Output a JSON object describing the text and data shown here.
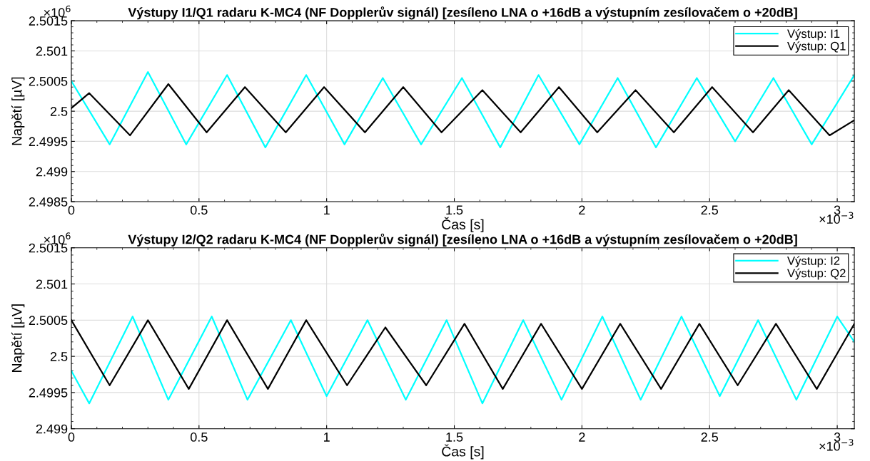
{
  "chart_data": [
    {
      "type": "line",
      "title": "Výstupy I1/Q1 radaru K-MC4 (NF Dopplerův signál) [zesíleno LNA o +16dB a výstupním zesílovačem o +20dB]",
      "xlabel": "Čas [s]",
      "ylabel": "Napětí [µV]",
      "annotations": [
        "×10$^{6}$",
        "×10$^{−3}$"
      ],
      "xlim": [
        0,
        3.067
      ],
      "ylim": [
        2.4985,
        2.5015
      ],
      "xticks": [
        0,
        0.5,
        1,
        1.5,
        2,
        2.5,
        3
      ],
      "yticks": [
        2.4985,
        2.499,
        2.4995,
        2.5,
        2.5005,
        2.501,
        2.5015
      ],
      "grid": true,
      "legend": "top right",
      "series": [
        {
          "name": "Výstup: I1",
          "color": "#00ffff",
          "x": [
            0,
            0.15,
            0.3,
            0.45,
            0.61,
            0.76,
            0.92,
            1.07,
            1.22,
            1.37,
            1.53,
            1.68,
            1.83,
            1.99,
            2.14,
            2.29,
            2.45,
            2.6,
            2.75,
            2.9,
            3.067
          ],
          "values": [
            2.5005,
            2.49945,
            2.50065,
            2.49945,
            2.5006,
            2.4994,
            2.5006,
            2.49945,
            2.50055,
            2.49945,
            2.50055,
            2.4994,
            2.5006,
            2.49945,
            2.50055,
            2.4994,
            2.50055,
            2.4995,
            2.50055,
            2.49945,
            2.5006
          ]
        },
        {
          "name": "Výstup: Q1",
          "color": "#000000",
          "x": [
            0,
            0.07,
            0.23,
            0.38,
            0.53,
            0.68,
            0.84,
            0.99,
            1.15,
            1.3,
            1.45,
            1.61,
            1.76,
            1.91,
            2.06,
            2.21,
            2.36,
            2.51,
            2.67,
            2.81,
            2.97,
            3.067
          ],
          "values": [
            2.50005,
            2.5003,
            2.4996,
            2.50045,
            2.49965,
            2.5004,
            2.49965,
            2.5004,
            2.49965,
            2.5004,
            2.49965,
            2.50035,
            2.49965,
            2.5004,
            2.49965,
            2.50035,
            2.49965,
            2.5004,
            2.49965,
            2.50035,
            2.4996,
            2.49985
          ]
        }
      ]
    },
    {
      "type": "line",
      "title": "Výstupy I2/Q2 radaru K-MC4 (NF Dopplerův signál) [zesíleno LNA o +16dB a výstupním zesílovačem o +20dB]",
      "xlabel": "Čas [s]",
      "ylabel": "Napětí [µV]",
      "annotations": [
        "×10$^{6}$",
        "×10$^{−3}$"
      ],
      "xlim": [
        0,
        3.067
      ],
      "ylim": [
        2.499,
        2.5015
      ],
      "xticks": [
        0,
        0.5,
        1,
        1.5,
        2,
        2.5,
        3
      ],
      "yticks": [
        2.499,
        2.4995,
        2.5,
        2.5005,
        2.501,
        2.5015
      ],
      "grid": true,
      "legend": "top right",
      "series": [
        {
          "name": "Výstup: I2",
          "color": "#00ffff",
          "x": [
            0,
            0.07,
            0.24,
            0.38,
            0.55,
            0.69,
            0.86,
            1.0,
            1.16,
            1.31,
            1.47,
            1.61,
            1.77,
            1.92,
            2.08,
            2.23,
            2.39,
            2.54,
            2.69,
            2.84,
            3.0,
            3.067
          ],
          "values": [
            2.4998,
            2.49935,
            2.50055,
            2.4994,
            2.50055,
            2.4994,
            2.5005,
            2.49945,
            2.5005,
            2.4994,
            2.5005,
            2.49935,
            2.5005,
            2.4994,
            2.50055,
            2.4994,
            2.50055,
            2.49945,
            2.5005,
            2.4994,
            2.50055,
            2.5002
          ]
        },
        {
          "name": "Výstup: Q2",
          "color": "#000000",
          "x": [
            0,
            0.15,
            0.3,
            0.46,
            0.61,
            0.77,
            0.92,
            1.08,
            1.23,
            1.39,
            1.54,
            1.69,
            1.84,
            2.0,
            2.15,
            2.31,
            2.46,
            2.61,
            2.76,
            2.92,
            3.067
          ],
          "values": [
            2.5005,
            2.4996,
            2.5005,
            2.49955,
            2.5005,
            2.49955,
            2.5005,
            2.4996,
            2.5004,
            2.4996,
            2.50045,
            2.49955,
            2.50045,
            2.49955,
            2.50045,
            2.49955,
            2.50045,
            2.4996,
            2.50045,
            2.49955,
            2.50045
          ]
        }
      ]
    }
  ]
}
